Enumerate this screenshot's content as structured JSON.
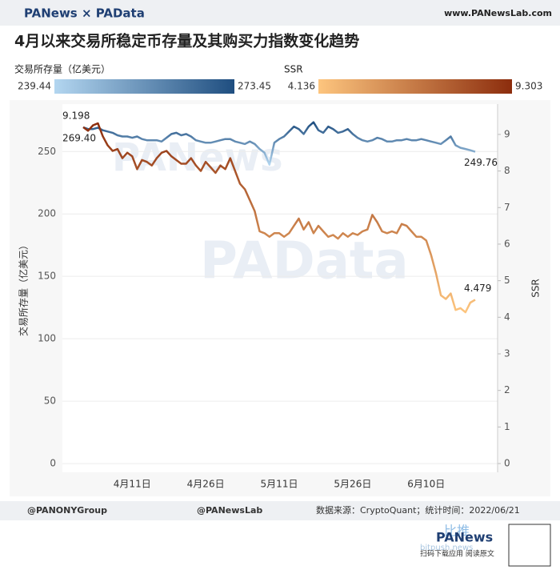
{
  "header": {
    "brand": "PANews × PAData",
    "site": "www.PANewsLab.com"
  },
  "watermarks": [
    "PANews",
    "PAData"
  ],
  "chart_data": {
    "type": "line",
    "title": "4月以来交易所稳定币存量及其购买力指数变化趋势",
    "categories": [
      null,
      null,
      null,
      null,
      null,
      null,
      null,
      null,
      null,
      null,
      "4月11日",
      null,
      null,
      null,
      null,
      null,
      null,
      null,
      null,
      null,
      null,
      null,
      null,
      null,
      null,
      "4月26日",
      null,
      null,
      null,
      null,
      null,
      null,
      null,
      null,
      null,
      null,
      null,
      null,
      null,
      null,
      "5月11日",
      null,
      null,
      null,
      null,
      null,
      null,
      null,
      null,
      null,
      null,
      null,
      null,
      null,
      null,
      "5月26日",
      null,
      null,
      null,
      null,
      null,
      null,
      null,
      null,
      null,
      null,
      null,
      null,
      null,
      null,
      "6月10日",
      null,
      null,
      null,
      null,
      null,
      null,
      null,
      null,
      null,
      null
    ],
    "ylabel": "交易所存量（亿美元）",
    "y2label": "SSR",
    "ylim": [
      -7,
      288
    ],
    "yticks": [
      0,
      50,
      100,
      150,
      200,
      250
    ],
    "y2lim": [
      -0.24,
      9.83
    ],
    "y2ticks": [
      0,
      1,
      2,
      3,
      4,
      5,
      6,
      7,
      8,
      9
    ],
    "grid": true,
    "series": [
      {
        "name": "交易所存量（亿美元）",
        "axis": "y",
        "color_scale": {
          "min": 239.44,
          "max": 273.45,
          "colors": [
            "#b3d6f0",
            "#1f4e80"
          ]
        },
        "values": [
          269.4,
          268,
          268,
          269,
          267,
          266,
          265,
          263,
          262,
          262,
          261,
          262,
          260,
          259,
          259,
          259,
          258,
          261,
          264,
          265,
          263,
          264,
          262,
          259,
          258,
          257,
          257,
          258,
          259,
          260,
          260,
          258,
          257,
          256,
          258,
          256,
          252,
          249,
          239.44,
          257,
          260,
          262,
          266,
          270,
          268,
          264,
          270,
          273.45,
          267,
          265,
          270,
          268,
          265,
          266,
          268,
          264,
          261,
          259,
          258,
          259,
          261,
          260,
          258,
          258,
          259,
          259,
          260,
          259,
          259,
          260,
          259,
          258,
          257,
          256,
          259,
          262,
          255,
          253,
          252,
          251,
          249.76
        ],
        "value_labels": [
          "269.40",
          null,
          null,
          null,
          null,
          null,
          null,
          null,
          null,
          null,
          null,
          null,
          null,
          null,
          null,
          null,
          null,
          null,
          null,
          null,
          null,
          null,
          null,
          null,
          null,
          null,
          null,
          null,
          null,
          null,
          null,
          null,
          null,
          null,
          null,
          null,
          null,
          null,
          null,
          null,
          null,
          null,
          null,
          null,
          null,
          null,
          null,
          null,
          null,
          null,
          null,
          null,
          null,
          null,
          null,
          null,
          null,
          null,
          null,
          null,
          null,
          null,
          null,
          null,
          null,
          null,
          null,
          null,
          null,
          null,
          null,
          null,
          null,
          null,
          null,
          null,
          null,
          null,
          null,
          null,
          "249.76"
        ]
      },
      {
        "name": "SSR",
        "axis": "y2",
        "color_scale": {
          "min": 4.136,
          "max": 9.303,
          "colors": [
            "#fdc57e",
            "#8c2d0d"
          ]
        },
        "values": [
          9.198,
          9.1,
          9.25,
          9.303,
          8.95,
          8.7,
          8.55,
          8.6,
          8.35,
          8.5,
          8.4,
          8.05,
          8.3,
          8.25,
          8.15,
          8.35,
          8.5,
          8.55,
          8.4,
          8.3,
          8.2,
          8.2,
          8.35,
          8.15,
          8.0,
          8.25,
          8.1,
          7.95,
          8.15,
          8.05,
          8.35,
          8.0,
          7.65,
          7.5,
          7.2,
          6.9,
          6.35,
          6.3,
          6.2,
          6.3,
          6.3,
          6.2,
          6.3,
          6.5,
          6.7,
          6.4,
          6.6,
          6.3,
          6.5,
          6.35,
          6.2,
          6.25,
          6.15,
          6.3,
          6.2,
          6.3,
          6.25,
          6.35,
          6.4,
          6.8,
          6.6,
          6.35,
          6.3,
          6.35,
          6.3,
          6.55,
          6.5,
          6.35,
          6.2,
          6.2,
          6.1,
          5.7,
          5.2,
          4.6,
          4.5,
          4.65,
          4.2,
          4.25,
          4.136,
          4.4,
          4.479
        ],
        "value_labels": [
          "9.198",
          null,
          null,
          null,
          null,
          null,
          null,
          null,
          null,
          null,
          null,
          null,
          null,
          null,
          null,
          null,
          null,
          null,
          null,
          null,
          null,
          null,
          null,
          null,
          null,
          null,
          null,
          null,
          null,
          null,
          null,
          null,
          null,
          null,
          null,
          null,
          null,
          null,
          null,
          null,
          null,
          null,
          null,
          null,
          null,
          null,
          null,
          null,
          null,
          null,
          null,
          null,
          null,
          null,
          null,
          null,
          null,
          null,
          null,
          null,
          null,
          null,
          null,
          null,
          null,
          null,
          null,
          null,
          null,
          null,
          null,
          null,
          null,
          null,
          null,
          null,
          null,
          null,
          null,
          null,
          "4.479"
        ]
      }
    ]
  },
  "footer": {
    "twitter": "@PANONYGroup",
    "facebook": "@PANewsLab",
    "source": "数据来源：CryptoQuant；统计时间：2022/06/21",
    "app_name": "比推",
    "app_site": "bitpush.news",
    "logo": "PANews",
    "scan": "扫码下载应用 阅读原文"
  }
}
